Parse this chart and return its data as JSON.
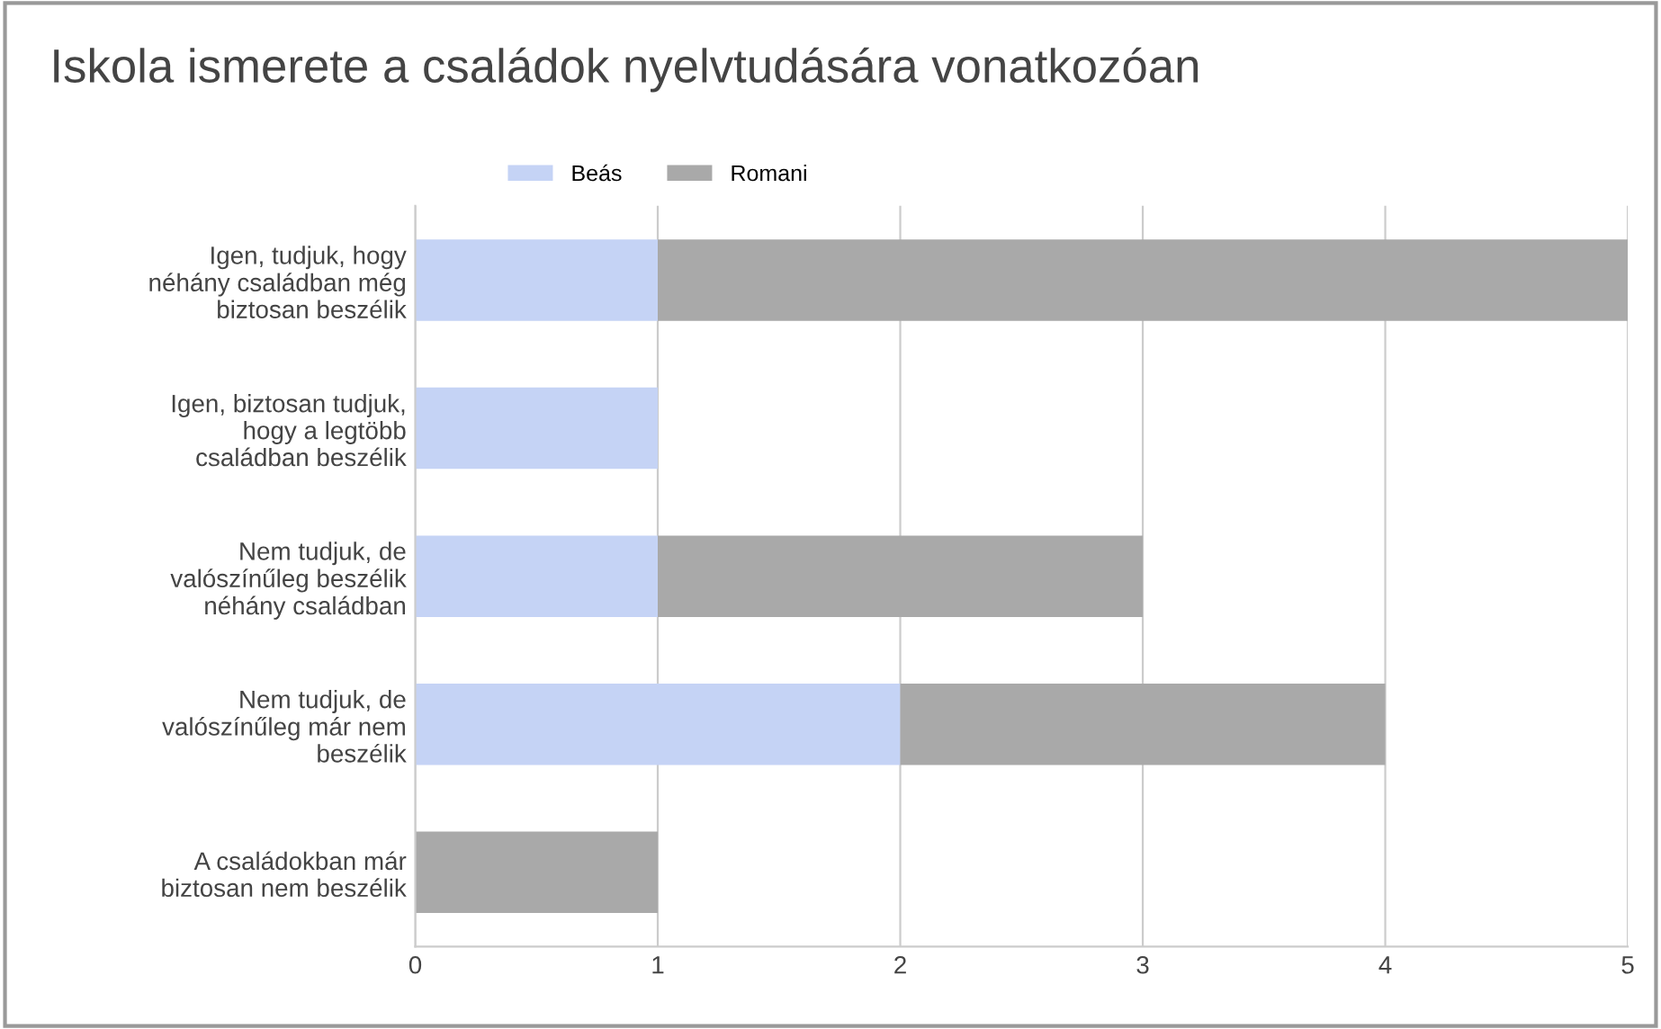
{
  "chart_data": {
    "type": "bar",
    "orientation": "horizontal",
    "stacked": true,
    "title": "Iskola ismerete a családok nyelvtudására vonatkozóan",
    "categories": [
      "Igen, tudjuk, hogy néhány családban még biztosan beszélik",
      "Igen, biztosan tudjuk, hogy a legtöbb családban beszélik",
      "Nem tudjuk, de valószínűleg beszélik néhány családban",
      "Nem tudjuk, de valószínűleg már nem beszélik",
      "A családokban már biztosan nem beszélik"
    ],
    "series": [
      {
        "name": "Beás",
        "color": "#c5d3f5",
        "values": [
          1,
          1,
          1,
          2,
          0
        ]
      },
      {
        "name": "Romani",
        "color": "#a9a9a9",
        "values": [
          4,
          0,
          2,
          2,
          1
        ]
      }
    ],
    "xlim": [
      0,
      5
    ],
    "xticks": [
      0,
      1,
      2,
      3,
      4,
      5
    ],
    "grid": "x",
    "legend": "top"
  }
}
